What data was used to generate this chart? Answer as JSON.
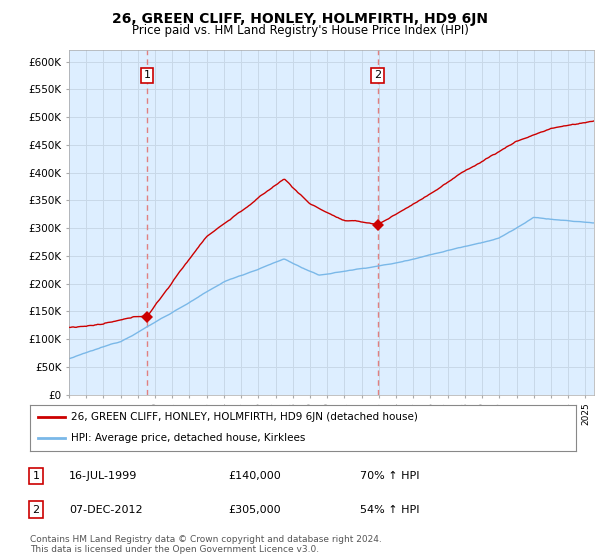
{
  "title": "26, GREEN CLIFF, HONLEY, HOLMFIRTH, HD9 6JN",
  "subtitle": "Price paid vs. HM Land Registry's House Price Index (HPI)",
  "yticks": [
    0,
    50000,
    100000,
    150000,
    200000,
    250000,
    300000,
    350000,
    400000,
    450000,
    500000,
    550000,
    600000
  ],
  "ytick_labels": [
    "£0",
    "£50K",
    "£100K",
    "£150K",
    "£200K",
    "£250K",
    "£300K",
    "£350K",
    "£400K",
    "£450K",
    "£500K",
    "£550K",
    "£600K"
  ],
  "xlim_start": 1995.0,
  "xlim_end": 2025.5,
  "ylim_min": 0,
  "ylim_max": 620000,
  "transaction1_x": 1999.54,
  "transaction1_y": 140000,
  "transaction2_x": 2012.93,
  "transaction2_y": 305000,
  "hpi_color": "#7ab8e8",
  "price_color": "#cc0000",
  "vline_color": "#e08080",
  "chart_bg": "#ddeeff",
  "legend_label_price": "26, GREEN CLIFF, HONLEY, HOLMFIRTH, HD9 6JN (detached house)",
  "legend_label_hpi": "HPI: Average price, detached house, Kirklees",
  "transaction1_date": "16-JUL-1999",
  "transaction1_price": "£140,000",
  "transaction1_hpi": "70% ↑ HPI",
  "transaction2_date": "07-DEC-2012",
  "transaction2_price": "£305,000",
  "transaction2_hpi": "54% ↑ HPI",
  "footnote": "Contains HM Land Registry data © Crown copyright and database right 2024.\nThis data is licensed under the Open Government Licence v3.0.",
  "background_color": "#ffffff",
  "grid_color": "#c8d8e8"
}
